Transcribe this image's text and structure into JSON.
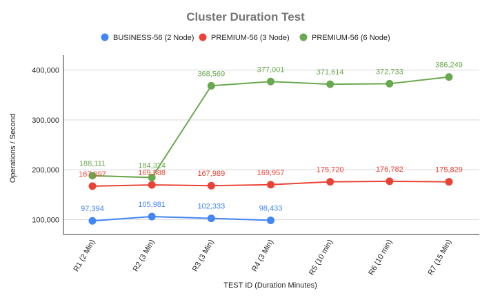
{
  "chart_data": {
    "type": "line",
    "title": "Cluster Duration Test",
    "xlabel": "TEST ID (Duration Minutes)",
    "ylabel": "Operations / Second",
    "categories": [
      "R1 (2 Min)",
      "R2 (3 Min)",
      "R3 (3 Min)",
      "R4 (3 Min)",
      "R5 (10 min)",
      "R6 (10 min)",
      "R7 (15 Min)"
    ],
    "ylim": [
      70000,
      430000
    ],
    "yticks": [
      100000,
      200000,
      300000,
      400000
    ],
    "ytick_labels": [
      "100,000",
      "200,000",
      "300,000",
      "400,000"
    ],
    "grid": true,
    "legend_position": "top",
    "series": [
      {
        "name": "BUSINESS-56 (2 Node)",
        "color": "#4285f4",
        "values": [
          97394,
          105981,
          102333,
          98433,
          null,
          null,
          null
        ],
        "labels": [
          "97,394",
          "105,981",
          "102,333",
          "98,433",
          null,
          null,
          null
        ]
      },
      {
        "name": "PREMIUM-56 (3 Node)",
        "color": "#ea4335",
        "values": [
          167097,
          169588,
          167989,
          169957,
          175720,
          176782,
          175829
        ],
        "labels": [
          "167,097",
          "169,588",
          "167,989",
          "169,957",
          "175,720",
          "176,782",
          "175,829"
        ]
      },
      {
        "name": "PREMIUM-56 (6 Node)",
        "color": "#6aa84f",
        "values": [
          188111,
          184324,
          368569,
          377001,
          371614,
          372733,
          386249
        ],
        "labels": [
          "188,111",
          "184,324",
          "368,569",
          "377,001",
          "371,614",
          "372,733",
          "386,249"
        ]
      }
    ]
  }
}
